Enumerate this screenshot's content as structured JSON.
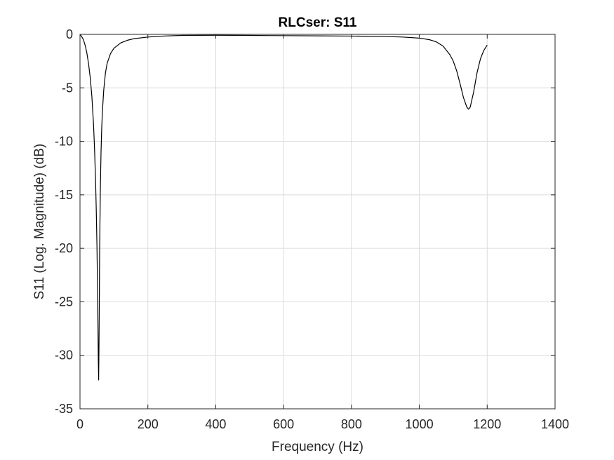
{
  "chart_data": {
    "type": "line",
    "title": "RLCser: S11",
    "xlabel": "Frequency (Hz)",
    "ylabel": "S11 (Log. Magnitude) (dB)",
    "xlim": [
      0,
      1400
    ],
    "ylim": [
      -35,
      0
    ],
    "xticks": [
      0,
      200,
      400,
      600,
      800,
      1000,
      1200,
      1400
    ],
    "yticks": [
      0,
      -5,
      -10,
      -15,
      -20,
      -25,
      -30,
      -35
    ],
    "grid": true,
    "legend": "none",
    "colors": {
      "line": "#000000",
      "grid": "#dcdcdc",
      "axes": "#262626"
    },
    "series": [
      {
        "x": [
          1,
          5,
          10,
          15,
          20,
          25,
          30,
          35,
          40,
          43,
          46,
          48,
          50,
          52,
          53,
          54,
          55,
          56,
          57,
          58,
          60,
          62,
          64,
          66,
          70,
          75,
          80,
          90,
          100,
          120,
          140,
          160,
          200,
          250,
          300,
          400,
          500,
          600,
          700,
          800,
          900,
          950,
          1000,
          1030,
          1050,
          1070,
          1090,
          1100,
          1110,
          1120,
          1130,
          1140,
          1145,
          1150,
          1160,
          1170,
          1180,
          1190,
          1200
        ],
        "y": [
          -0.05,
          -0.2,
          -0.5,
          -1.0,
          -1.7,
          -2.7,
          -4.0,
          -5.8,
          -8.5,
          -10.8,
          -13.8,
          -16.5,
          -19.8,
          -24.5,
          -27.5,
          -30.5,
          -32.3,
          -29.0,
          -24.5,
          -19.8,
          -14.5,
          -11.0,
          -8.8,
          -7.2,
          -5.2,
          -3.6,
          -2.7,
          -1.8,
          -1.3,
          -0.8,
          -0.55,
          -0.4,
          -0.25,
          -0.15,
          -0.1,
          -0.08,
          -0.1,
          -0.12,
          -0.14,
          -0.16,
          -0.2,
          -0.25,
          -0.35,
          -0.5,
          -0.7,
          -1.1,
          -1.9,
          -2.5,
          -3.4,
          -4.6,
          -5.9,
          -6.8,
          -7.0,
          -6.8,
          -5.4,
          -3.6,
          -2.3,
          -1.5,
          -1.0
        ]
      }
    ]
  }
}
